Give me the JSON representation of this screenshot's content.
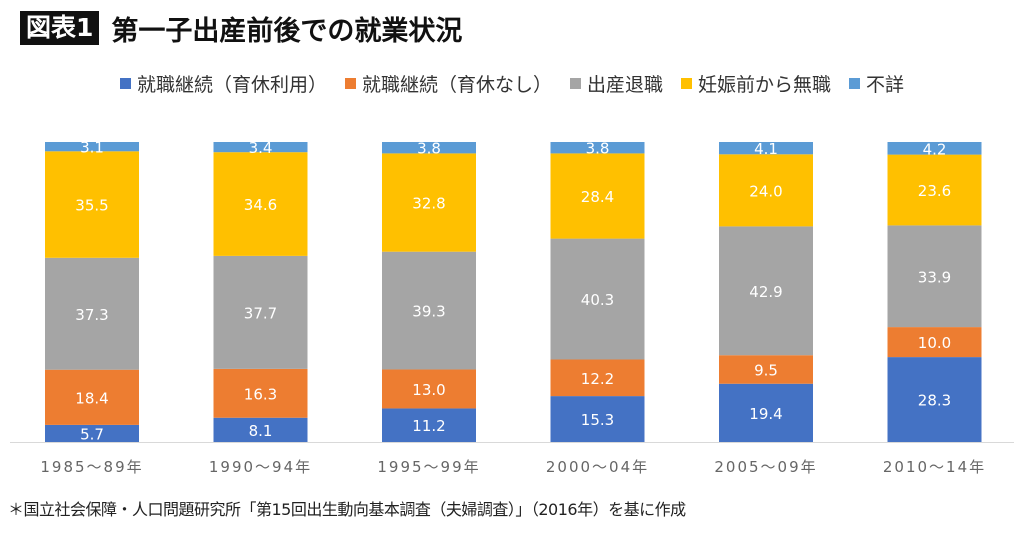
{
  "header": {
    "figure_label": "図表1",
    "title": "第一子出産前後での就業状況"
  },
  "footer": {
    "source_note": "＊国立社会保障・人口問題研究所「第15回出生動向基本調査（夫婦調査）」（2016年）を基に作成"
  },
  "chart_data": {
    "type": "bar",
    "stacked": true,
    "title": "第一子出産前後での就業状況",
    "xlabel": "",
    "ylabel": "",
    "ylim": [
      0,
      100
    ],
    "grid": false,
    "legend_position": "top",
    "categories": [
      "1985〜89年",
      "1990〜94年",
      "1995〜99年",
      "2000〜04年",
      "2005〜09年",
      "2010〜14年"
    ],
    "series": [
      {
        "name": "就職継続（育休利用）",
        "color": "#4472C4",
        "values": [
          5.7,
          8.1,
          11.2,
          15.3,
          19.4,
          28.3
        ]
      },
      {
        "name": "就職継続（育休なし）",
        "color": "#ED7D31",
        "values": [
          18.4,
          16.3,
          13.0,
          12.2,
          9.5,
          10.0
        ]
      },
      {
        "name": "出産退職",
        "color": "#A5A5A5",
        "values": [
          37.3,
          37.7,
          39.3,
          40.3,
          42.9,
          33.9
        ]
      },
      {
        "name": "妊娠前から無職",
        "color": "#FFC000",
        "values": [
          35.5,
          34.6,
          32.8,
          28.4,
          24.0,
          23.6
        ]
      },
      {
        "name": "不詳",
        "color": "#5B9BD5",
        "values": [
          3.1,
          3.4,
          3.8,
          3.8,
          4.1,
          4.2
        ]
      }
    ]
  }
}
